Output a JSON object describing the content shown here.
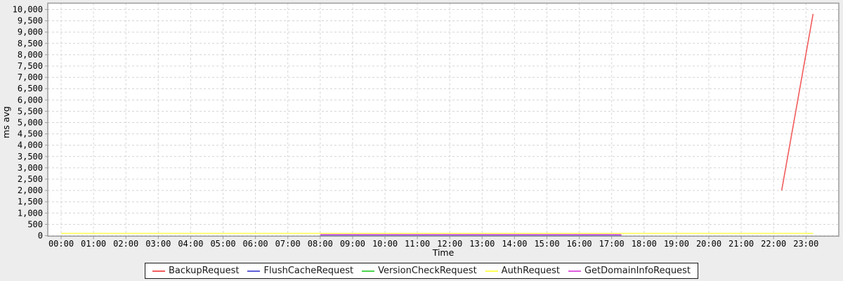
{
  "chart_data": {
    "type": "line",
    "title": "",
    "xlabel": "Time",
    "ylabel": "ms avg",
    "ylim": [
      0,
      10000
    ],
    "y_tick_step": 500,
    "x_ticks": [
      "00:00",
      "01:00",
      "02:00",
      "03:00",
      "04:00",
      "05:00",
      "06:00",
      "07:00",
      "08:00",
      "09:00",
      "10:00",
      "11:00",
      "12:00",
      "13:00",
      "14:00",
      "15:00",
      "16:00",
      "17:00",
      "18:00",
      "19:00",
      "20:00",
      "21:00",
      "22:00",
      "23:00"
    ],
    "grid": "dashed",
    "legend_position": "bottom",
    "series": [
      {
        "name": "BackupRequest",
        "color": "#f25c5c",
        "points": [
          [
            22.25,
            2000
          ],
          [
            23.22,
            9800
          ]
        ]
      },
      {
        "name": "FlushCacheRequest",
        "color": "#5f5fd8",
        "points": [
          [
            8.0,
            12
          ],
          [
            17.3,
            12
          ]
        ]
      },
      {
        "name": "VersionCheckRequest",
        "color": "#4ed44e",
        "points": []
      },
      {
        "name": "AuthRequest",
        "color": "#ffff57",
        "points": [
          [
            0.0,
            100
          ],
          [
            23.22,
            100
          ]
        ]
      },
      {
        "name": "GetDomainInfoRequest",
        "color": "#de5ede",
        "points": [
          [
            8.0,
            50
          ],
          [
            17.3,
            50
          ]
        ]
      }
    ]
  },
  "colors": {
    "page_background": "#ededee",
    "plot_background": "#ffffff",
    "grid": "#d4d4d4",
    "plot_border": "#9c9c9c",
    "tick_text": "#000000",
    "legend_border": "#1a1a1a",
    "legend_background": "#ffffff"
  }
}
